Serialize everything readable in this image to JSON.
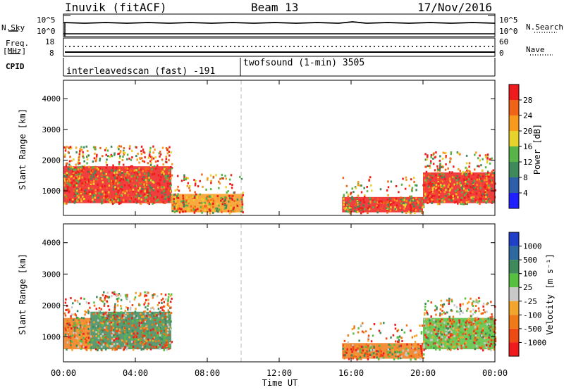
{
  "header": {
    "station": "Inuvik (fitACF)",
    "beam": "Beam 13",
    "date": "17/Nov/2016"
  },
  "panels": {
    "nsky": {
      "label": "N.Sky",
      "ticks": [
        "10^5",
        "10^0"
      ]
    },
    "nsearch": {
      "label": "N.Search",
      "ticks": [
        "10^5",
        "10^0"
      ]
    },
    "freq": {
      "label_top": "Freq.",
      "label_bottom": "[MHz]",
      "ticks": [
        "18",
        "8"
      ]
    },
    "nave": {
      "label": "Nave",
      "ticks": [
        "60",
        "0"
      ]
    },
    "cpid": {
      "label": "CPID",
      "segments": [
        "interleavedscan (fast) -191",
        "twofsound (1-min) 3505"
      ]
    }
  },
  "chart_data": [
    {
      "type": "heatmap",
      "title": "",
      "xlabel": "Time UT",
      "ylabel": "Slant Range [km]",
      "x_ticks": [
        "00:00",
        "04:00",
        "08:00",
        "12:00",
        "16:00",
        "20:00",
        "00:00"
      ],
      "y_ticks": [
        1000,
        2000,
        3000,
        4000
      ],
      "ylim": [
        200,
        4600
      ],
      "colorbar": {
        "label": "Power [dB]",
        "ticks": [
          4,
          8,
          12,
          16,
          20,
          24,
          28
        ],
        "colors": [
          "#1f1fff",
          "#2e5fa8",
          "#3e8a5a",
          "#58b348",
          "#e8d22c",
          "#f79a1e",
          "#f06418",
          "#ee1c1c"
        ]
      },
      "regions": [
        {
          "t": [
            0,
            6
          ],
          "r": [
            600,
            1800
          ],
          "level": 28
        },
        {
          "t": [
            6,
            10
          ],
          "r": [
            300,
            900
          ],
          "level": 20
        },
        {
          "t": [
            15.5,
            20
          ],
          "r": [
            300,
            800
          ],
          "level": 28
        },
        {
          "t": [
            20,
            24
          ],
          "r": [
            600,
            1600
          ],
          "level": 28
        }
      ]
    },
    {
      "type": "heatmap",
      "title": "",
      "xlabel": "Time UT",
      "ylabel": "Slant Range [km]",
      "x_ticks": [
        "00:00",
        "04:00",
        "08:00",
        "12:00",
        "16:00",
        "20:00",
        "00:00"
      ],
      "y_ticks": [
        1000,
        2000,
        3000,
        4000
      ],
      "ylim": [
        200,
        4600
      ],
      "colorbar": {
        "label": "Velocity [m s⁻¹]",
        "ticks": [
          "1000",
          "500",
          "100",
          "25",
          "-25",
          "-100",
          "-500",
          "-1000"
        ],
        "colors": [
          "#2040c8",
          "#2e6aa0",
          "#3e8a5a",
          "#58c040",
          "#c8c8c8",
          "#f2a52c",
          "#f07a18",
          "#ee4a14",
          "#ee1c1c"
        ]
      },
      "regions": [
        {
          "t": [
            0,
            1.5
          ],
          "r": [
            600,
            1600
          ],
          "level": -500
        },
        {
          "t": [
            1.5,
            6
          ],
          "r": [
            600,
            1800
          ],
          "level": 100
        },
        {
          "t": [
            15.5,
            20
          ],
          "r": [
            300,
            800
          ],
          "level": -500
        },
        {
          "t": [
            20,
            24
          ],
          "r": [
            600,
            1600
          ],
          "level": 25
        }
      ]
    }
  ]
}
